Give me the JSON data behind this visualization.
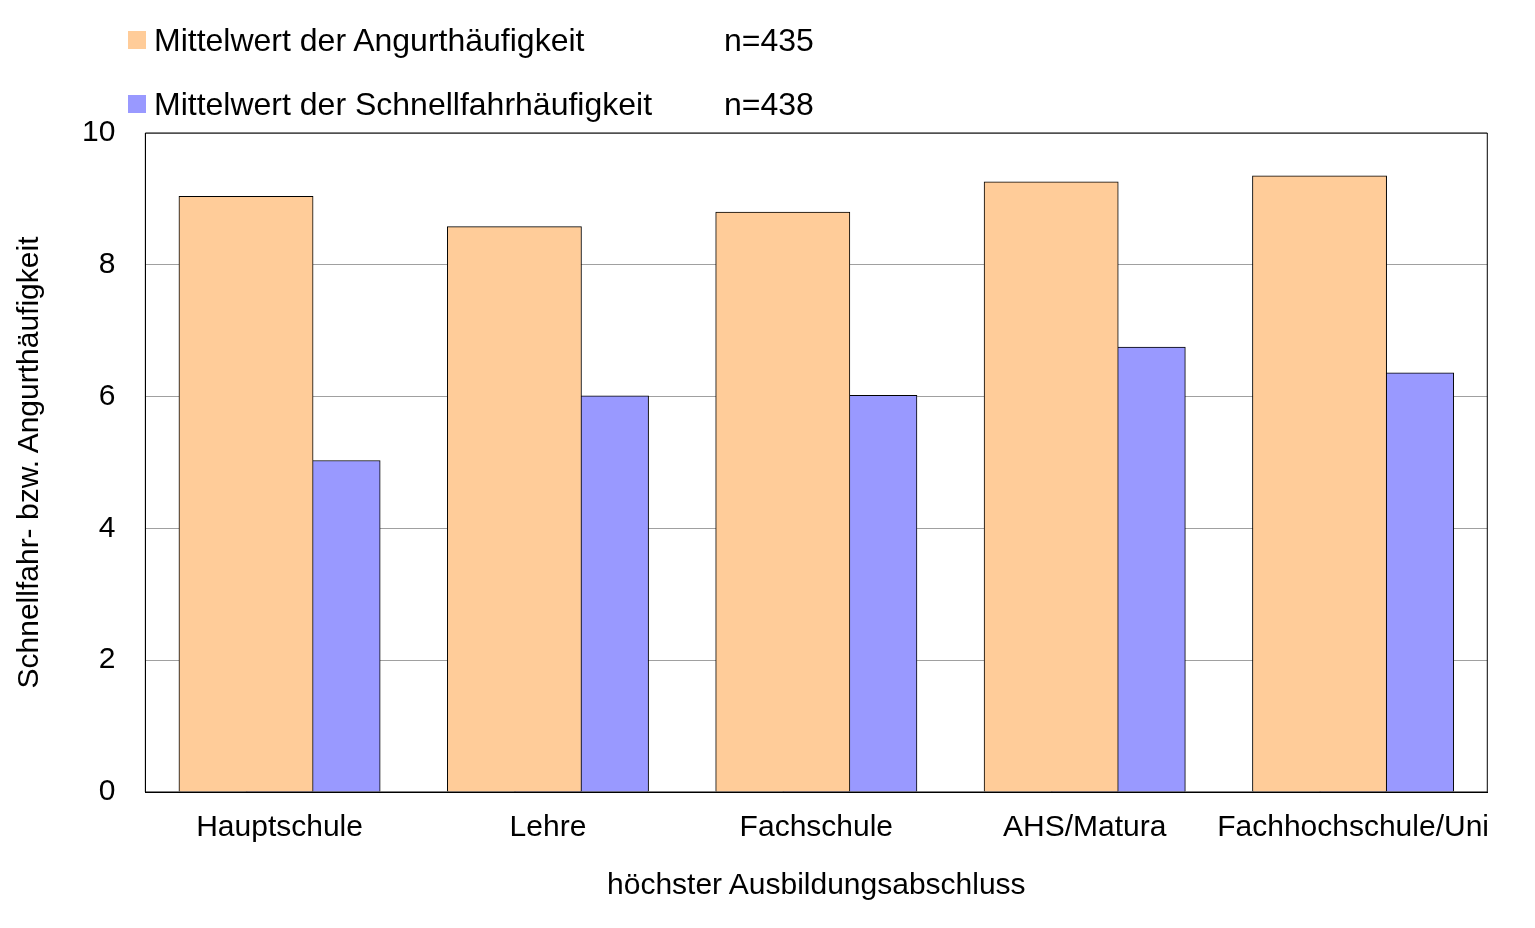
{
  "chart_data": {
    "type": "bar",
    "xlabel": "höchster Ausbildungsabschluss",
    "ylabel": "Schnellfahr- bzw. Angurthäufigkeit",
    "categories": [
      "Hauptschule",
      "Lehre",
      "Fachschule",
      "AHS/Matura",
      "Fachhochschule/Uni"
    ],
    "series": [
      {
        "name": "Mittelwert der Angurthäufigkeit",
        "color": "#ffcc99",
        "values": [
          9.04,
          8.58,
          8.8,
          9.26,
          9.35
        ]
      },
      {
        "name": "Mittelwert der Schnellfahrhäufigkeit",
        "color": "#9999ff",
        "values": [
          5.03,
          6.01,
          6.02,
          6.75,
          6.36
        ]
      }
    ],
    "annotations": [
      "n=435",
      "n=438"
    ],
    "ylim": [
      0,
      10
    ],
    "yticks": [
      0,
      2,
      4,
      6,
      8,
      10
    ],
    "grid": "y",
    "legend": "top left"
  }
}
